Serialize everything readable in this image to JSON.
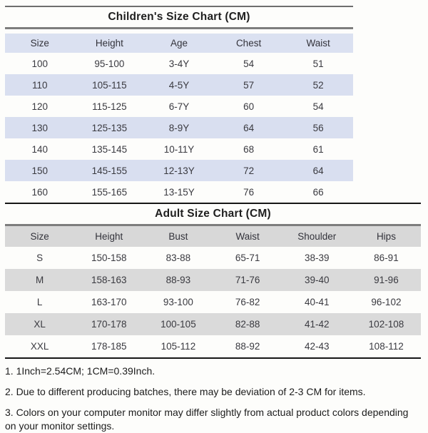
{
  "children_chart": {
    "title": "Children's Size Chart (CM)",
    "columns": [
      "Size",
      "Height",
      "Age",
      "Chest",
      "Waist"
    ],
    "rows": [
      [
        "100",
        "95-100",
        "3-4Y",
        "54",
        "51"
      ],
      [
        "110",
        "105-115",
        "4-5Y",
        "57",
        "52"
      ],
      [
        "120",
        "115-125",
        "6-7Y",
        "60",
        "54"
      ],
      [
        "130",
        "125-135",
        "8-9Y",
        "64",
        "56"
      ],
      [
        "140",
        "135-145",
        "10-11Y",
        "68",
        "61"
      ],
      [
        "150",
        "145-155",
        "12-13Y",
        "72",
        "64"
      ],
      [
        "160",
        "155-165",
        "13-15Y",
        "76",
        "66"
      ]
    ],
    "header_bg": "#dbe1f1",
    "stripe_color": "#d9dff0"
  },
  "adult_chart": {
    "title": "Adult Size Chart (CM)",
    "columns": [
      "Size",
      "Height",
      "Bust",
      "Waist",
      "Shoulder",
      "Hips"
    ],
    "rows": [
      [
        "S",
        "150-158",
        "83-88",
        "65-71",
        "38-39",
        "86-91"
      ],
      [
        "M",
        "158-163",
        "88-93",
        "71-76",
        "39-40",
        "91-96"
      ],
      [
        "L",
        "163-170",
        "93-100",
        "76-82",
        "40-41",
        "96-102"
      ],
      [
        "XL",
        "170-178",
        "100-105",
        "82-88",
        "41-42",
        "102-108"
      ],
      [
        "XXL",
        "178-185",
        "105-112",
        "88-92",
        "42-43",
        "108-112"
      ]
    ],
    "header_bg": "#d8d8d8",
    "stripe_color": "#dadada"
  },
  "notes": [
    "1. 1Inch=2.54CM; 1CM=0.39Inch.",
    "2. Due to different producing batches, there may be deviation of 2-3 CM for items.",
    "3. Colors on your computer monitor may differ slightly from actual product colors depending on your monitor settings."
  ]
}
